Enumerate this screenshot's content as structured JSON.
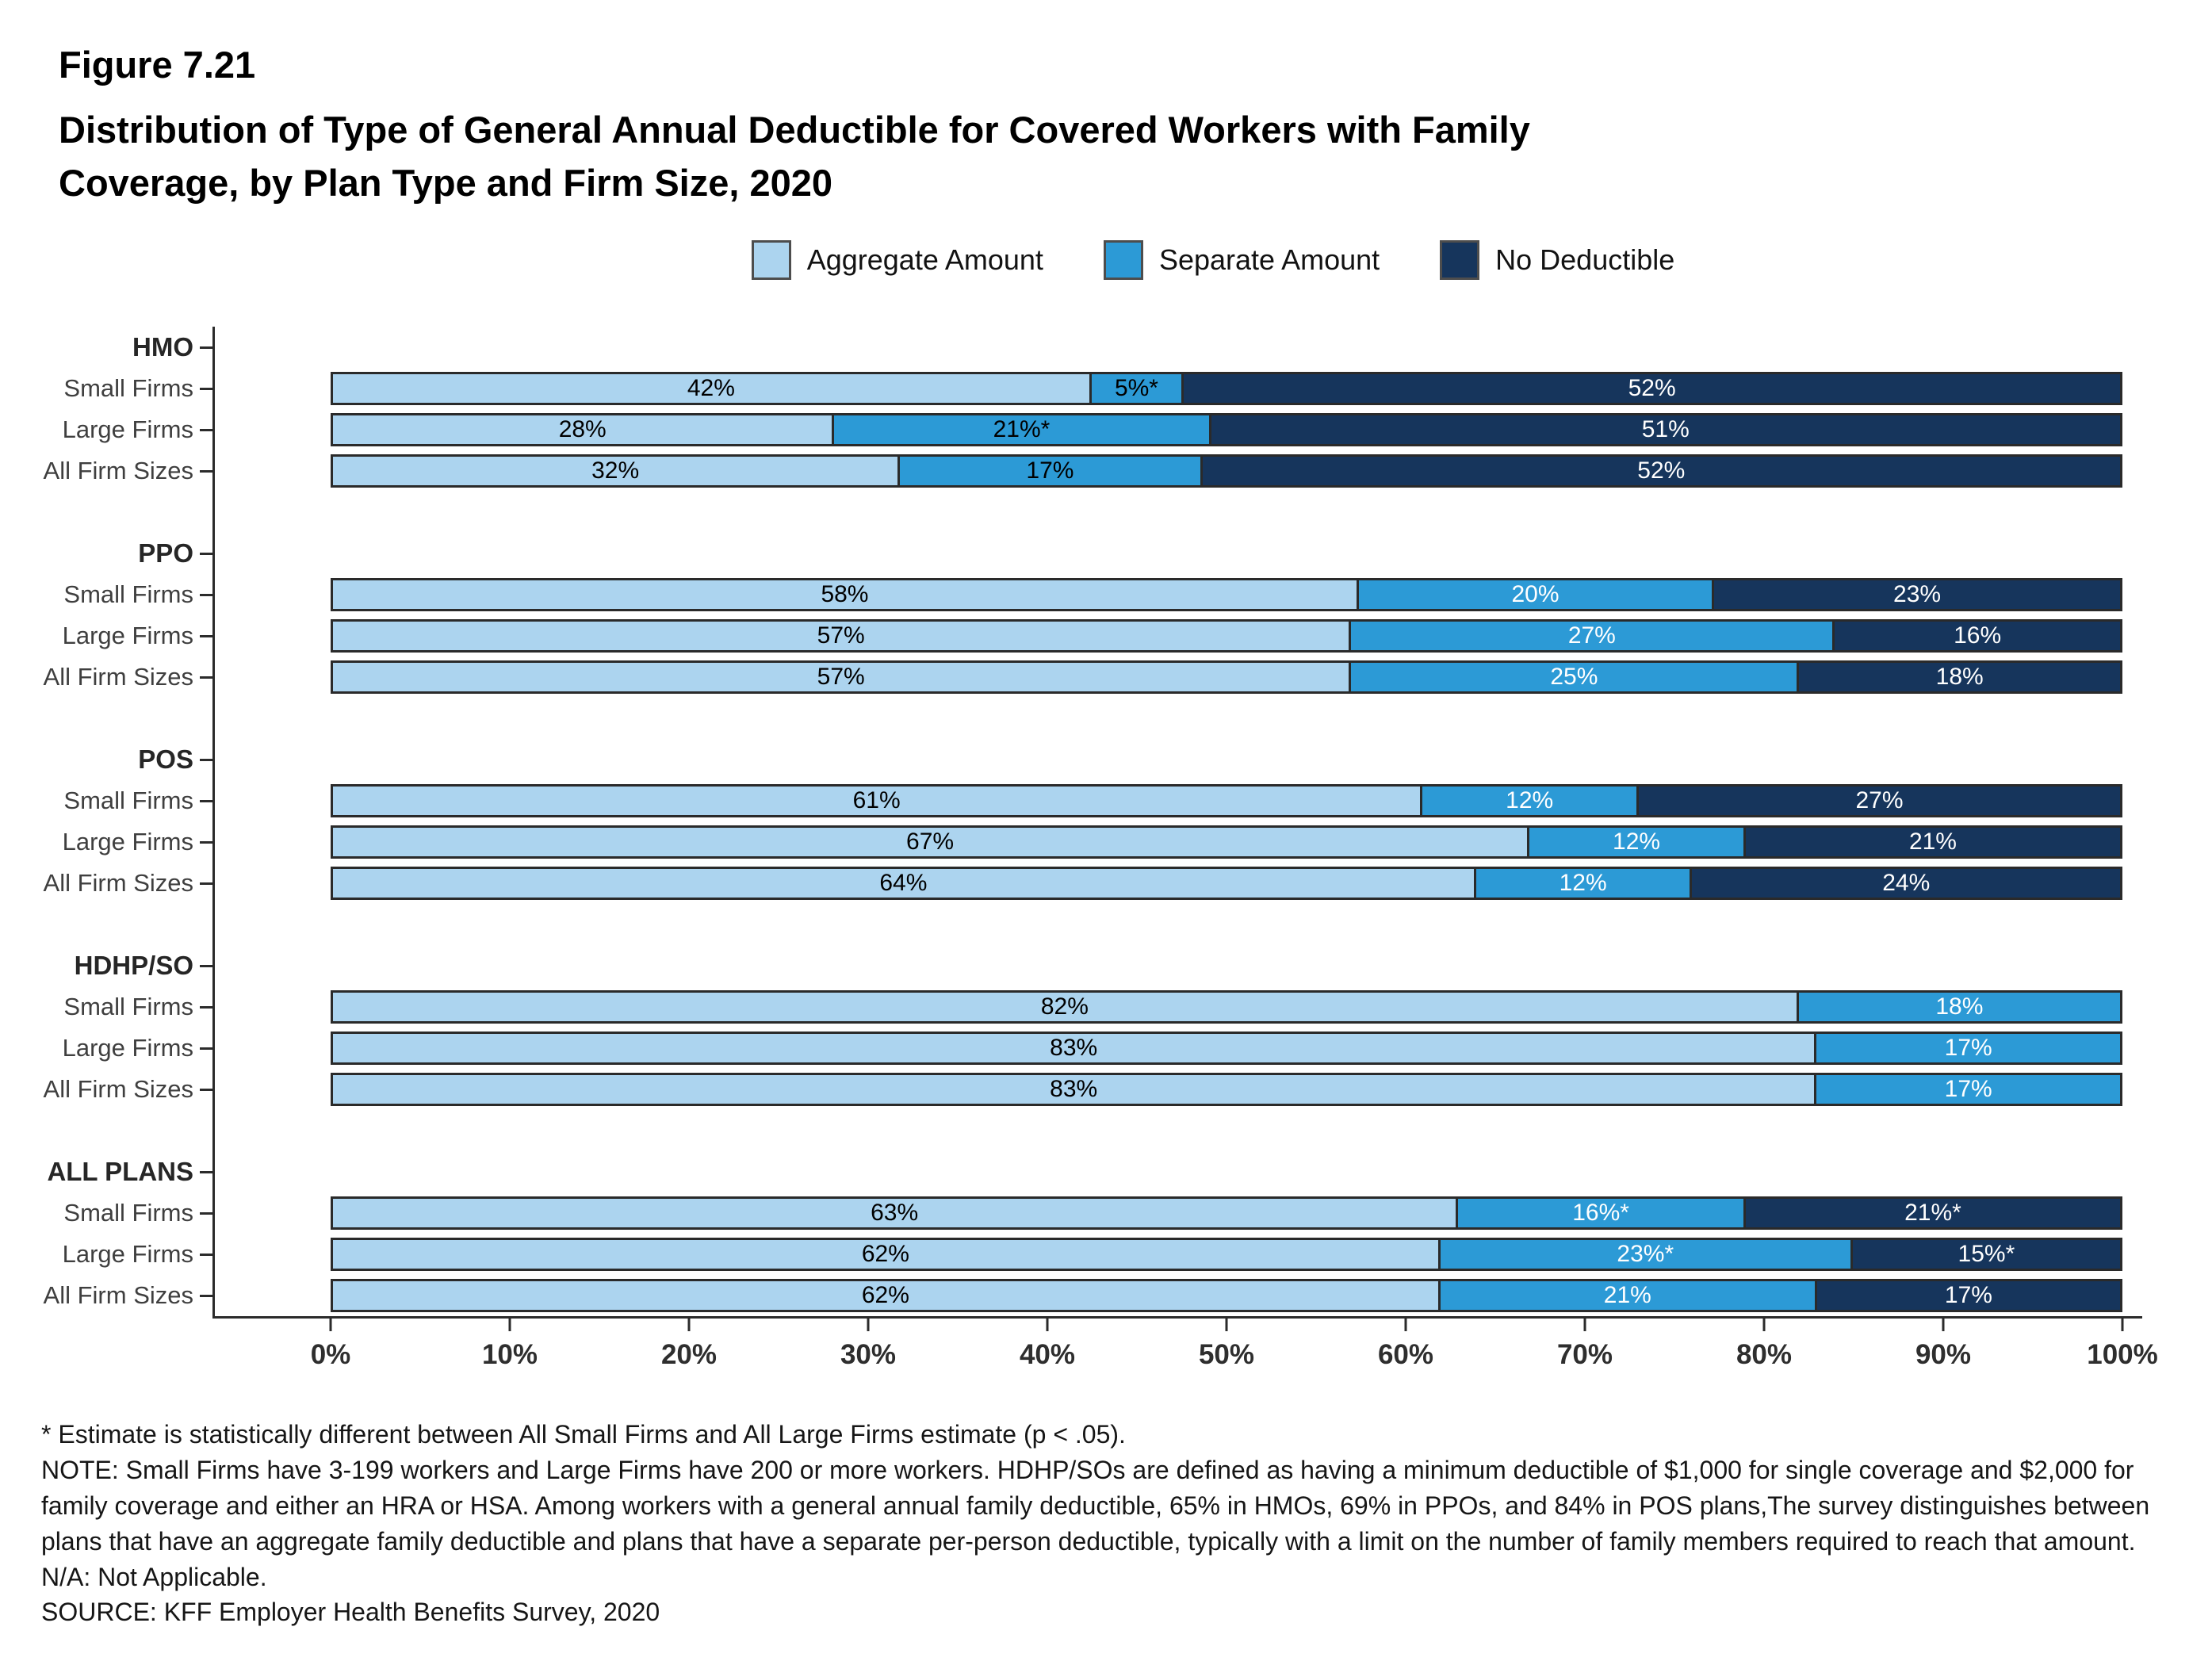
{
  "figure": {
    "label": "Figure 7.21",
    "title_lines": [
      "Distribution of Type of General Annual Deductible for Covered Workers with Family",
      "Coverage, by Plan Type and Firm Size, 2020"
    ]
  },
  "chart_data": {
    "type": "bar",
    "orientation": "horizontal",
    "stacked": true,
    "title": "Distribution of Type of General Annual Deductible for Covered Workers with Family Coverage, by Plan Type and Firm Size, 2020",
    "xlabel": "",
    "ylabel": "",
    "legend_position": "top-center",
    "x_axis": {
      "range": [
        0,
        100
      ],
      "ticks": [
        "0%",
        "10%",
        "20%",
        "30%",
        "40%",
        "50%",
        "60%",
        "70%",
        "80%",
        "90%",
        "100%"
      ]
    },
    "series": [
      {
        "name": "Aggregate Amount",
        "color": "#ACD4EF",
        "label_color": "#000000"
      },
      {
        "name": "Separate Amount",
        "color": "#2C9AD6",
        "label_color": "#FFFFFF"
      },
      {
        "name": "No Deductible",
        "color": "#16355C",
        "label_color": "#FFFFFF"
      }
    ],
    "groups": [
      {
        "name": "HMO",
        "rows": [
          {
            "label": "Small Firms",
            "values": [
              42,
              5,
              52
            ],
            "labels": [
              "42%",
              "5%*",
              "52%"
            ],
            "label_colors": [
              null,
              "#000000",
              null
            ]
          },
          {
            "label": "Large Firms",
            "values": [
              28,
              21,
              51
            ],
            "labels": [
              "28%",
              "21%*",
              "51%"
            ],
            "label_colors": [
              null,
              "#000000",
              null
            ]
          },
          {
            "label": "All Firm Sizes",
            "values": [
              32,
              17,
              52
            ],
            "labels": [
              "32%",
              "17%",
              "52%"
            ],
            "label_colors": [
              null,
              "#000000",
              null
            ]
          }
        ]
      },
      {
        "name": "PPO",
        "rows": [
          {
            "label": "Small Firms",
            "values": [
              58,
              20,
              23
            ],
            "labels": [
              "58%",
              "20%",
              "23%"
            ]
          },
          {
            "label": "Large Firms",
            "values": [
              57,
              27,
              16
            ],
            "labels": [
              "57%",
              "27%",
              "16%"
            ]
          },
          {
            "label": "All Firm Sizes",
            "values": [
              57,
              25,
              18
            ],
            "labels": [
              "57%",
              "25%",
              "18%"
            ]
          }
        ]
      },
      {
        "name": "POS",
        "rows": [
          {
            "label": "Small Firms",
            "values": [
              61,
              12,
              27
            ],
            "labels": [
              "61%",
              "12%",
              "27%"
            ]
          },
          {
            "label": "Large Firms",
            "values": [
              67,
              12,
              21
            ],
            "labels": [
              "67%",
              "12%",
              "21%"
            ]
          },
          {
            "label": "All Firm Sizes",
            "values": [
              64,
              12,
              24
            ],
            "labels": [
              "64%",
              "12%",
              "24%"
            ]
          }
        ]
      },
      {
        "name": "HDHP/SO",
        "rows": [
          {
            "label": "Small Firms",
            "values": [
              82,
              18,
              0
            ],
            "labels": [
              "82%",
              "18%",
              ""
            ]
          },
          {
            "label": "Large Firms",
            "values": [
              83,
              17,
              0
            ],
            "labels": [
              "83%",
              "17%",
              ""
            ]
          },
          {
            "label": "All Firm Sizes",
            "values": [
              83,
              17,
              0
            ],
            "labels": [
              "83%",
              "17%",
              ""
            ]
          }
        ]
      },
      {
        "name": "ALL PLANS",
        "rows": [
          {
            "label": "Small Firms",
            "values": [
              63,
              16,
              21
            ],
            "labels": [
              "63%",
              "16%*",
              "21%*"
            ]
          },
          {
            "label": "Large Firms",
            "values": [
              62,
              23,
              15
            ],
            "labels": [
              "62%",
              "23%*",
              "15%*"
            ]
          },
          {
            "label": "All Firm Sizes",
            "values": [
              62,
              21,
              17
            ],
            "labels": [
              "62%",
              "21%",
              "17%"
            ]
          }
        ]
      }
    ]
  },
  "footnotes": [
    "* Estimate is statistically different between All Small Firms and All Large Firms estimate (p < .05).",
    "NOTE: Small Firms have 3-199 workers and Large Firms have 200 or more workers. HDHP/SOs are defined as having a minimum deductible of $1,000 for single coverage and $2,000 for family coverage and either an HRA or HSA. Among workers with a general annual family deductible, 65% in HMOs, 69% in PPOs, and 84% in POS plans,The survey distinguishes between plans that have an aggregate family deductible and plans that have a separate per-person deductible, typically with a limit on the number of family members required to reach that amount. N/A: Not Applicable.",
    "SOURCE: KFF Employer Health Benefits Survey, 2020"
  ]
}
